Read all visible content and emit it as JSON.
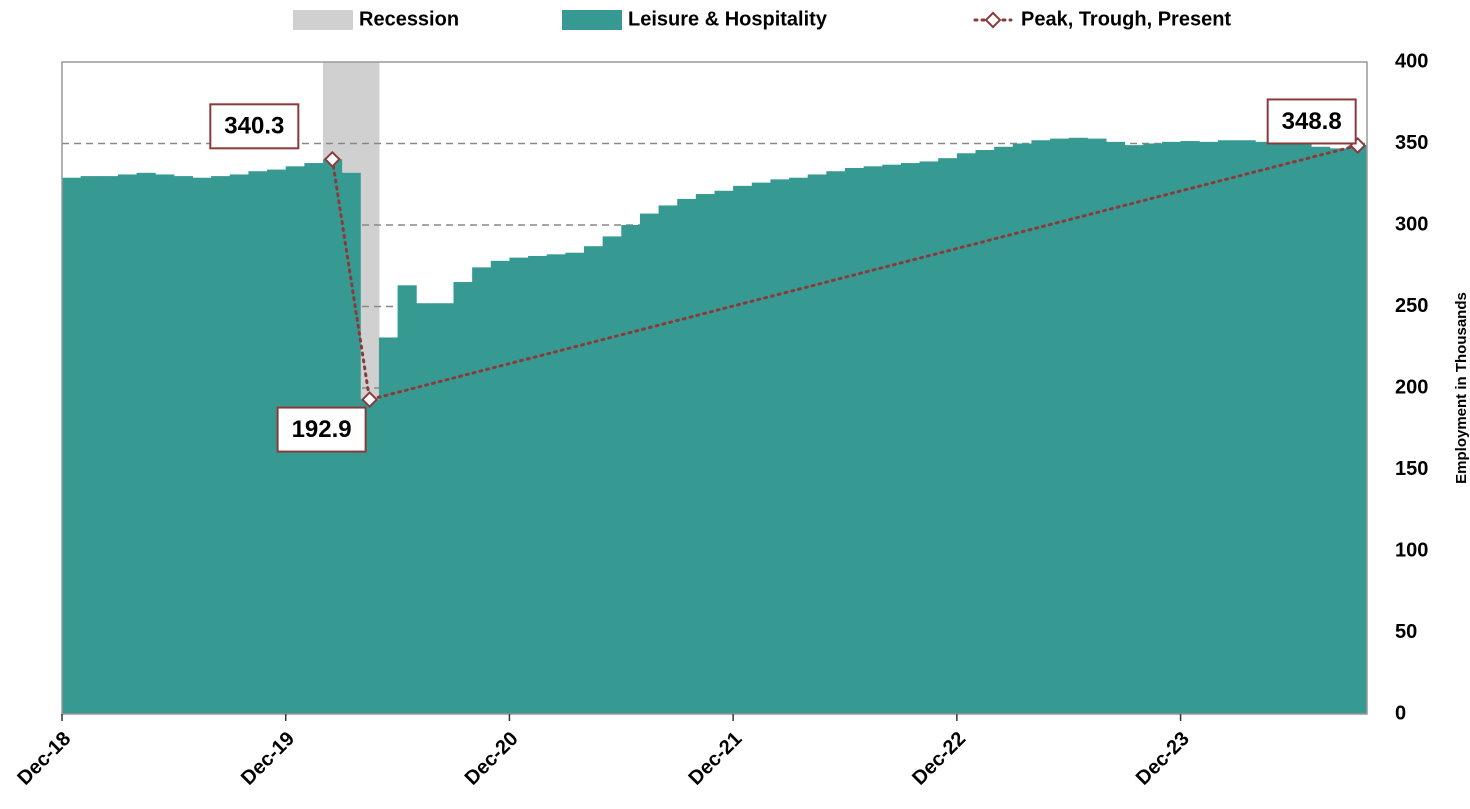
{
  "chart_data": {
    "type": "bar",
    "y_axis_label": "Employment in Thousands",
    "categories": [
      "Dec-18",
      null,
      null,
      null,
      null,
      null,
      null,
      null,
      null,
      null,
      null,
      null,
      "Dec-19",
      null,
      null,
      null,
      null,
      null,
      null,
      null,
      null,
      null,
      null,
      null,
      "Dec-20",
      null,
      null,
      null,
      null,
      null,
      null,
      null,
      null,
      null,
      null,
      null,
      "Dec-21",
      null,
      null,
      null,
      null,
      null,
      null,
      null,
      null,
      null,
      null,
      null,
      "Dec-22",
      null,
      null,
      null,
      null,
      null,
      null,
      null,
      null,
      null,
      null,
      null,
      "Dec-23",
      null,
      null,
      null,
      null,
      null,
      null,
      null,
      null,
      null
    ],
    "series": [
      {
        "name": "Recession",
        "color": "#d0d0d0",
        "values": [
          null,
          null,
          null,
          null,
          null,
          null,
          null,
          null,
          null,
          null,
          null,
          null,
          null,
          null,
          400,
          400,
          400,
          null,
          null,
          null,
          null,
          null,
          null,
          null,
          null,
          null,
          null,
          null,
          null,
          null,
          null,
          null,
          null,
          null,
          null,
          null,
          null,
          null,
          null,
          null,
          null,
          null,
          null,
          null,
          null,
          null,
          null,
          null,
          null,
          null,
          null,
          null,
          null,
          null,
          null,
          null,
          null,
          null,
          null,
          null,
          null,
          null,
          null,
          null,
          null,
          null,
          null,
          null,
          null,
          null
        ]
      },
      {
        "name": "Leisure & Hospitality",
        "color": "#369a92",
        "values": [
          329,
          330,
          330,
          331,
          332,
          331,
          330,
          329,
          330,
          331,
          333,
          334,
          336,
          338,
          340.3,
          332,
          192.9,
          231,
          263,
          252,
          252,
          265,
          274,
          278,
          280,
          281,
          282,
          283,
          287,
          293,
          300,
          307,
          312,
          316,
          319,
          321,
          324,
          326,
          328,
          329,
          331,
          333,
          335,
          336,
          337,
          338,
          339,
          341,
          344,
          346,
          348,
          350,
          352,
          353,
          353.5,
          353,
          351,
          349,
          350,
          351,
          351.5,
          351,
          352,
          352,
          351,
          351,
          350,
          348,
          347,
          348.8
        ]
      },
      {
        "name": "Peak, Trough, Present",
        "color": "#8b3a3a",
        "values": [
          null,
          null,
          null,
          null,
          null,
          null,
          null,
          null,
          null,
          null,
          null,
          null,
          null,
          null,
          340.3,
          null,
          192.9,
          null,
          null,
          null,
          null,
          null,
          null,
          null,
          null,
          null,
          null,
          null,
          null,
          null,
          null,
          null,
          null,
          null,
          null,
          null,
          null,
          null,
          null,
          null,
          null,
          null,
          null,
          null,
          null,
          null,
          null,
          null,
          null,
          null,
          null,
          null,
          null,
          null,
          null,
          null,
          null,
          null,
          null,
          null,
          null,
          null,
          null,
          null,
          null,
          null,
          null,
          null,
          null,
          348.8
        ]
      }
    ],
    "ylim": [
      0,
      400
    ],
    "yticks": [
      0,
      50,
      100,
      150,
      200,
      250,
      300,
      350,
      400
    ],
    "grid": true,
    "legend": "top"
  }
}
